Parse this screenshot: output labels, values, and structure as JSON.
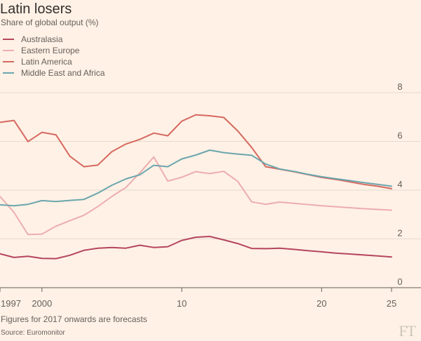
{
  "header": {
    "title": "Latin losers",
    "subtitle": "Share of global output (%)"
  },
  "footer": {
    "note": "Figures for 2017 onwards are forecasts",
    "source": "Source: Euromonitor",
    "logo": "FT"
  },
  "chart_data": {
    "type": "line",
    "title": "Latin losers",
    "subtitle": "Share of global output (%)",
    "xlabel": "",
    "ylabel": "",
    "xlim": [
      1997,
      2025
    ],
    "ylim": [
      0,
      8
    ],
    "x_ticks": [
      {
        "value": 1997,
        "label": "1997"
      },
      {
        "value": 2000,
        "label": "2000"
      },
      {
        "value": 2010,
        "label": "10"
      },
      {
        "value": 2020,
        "label": "20"
      },
      {
        "value": 2025,
        "label": "25"
      }
    ],
    "y_ticks": [
      {
        "value": 0,
        "label": "0"
      },
      {
        "value": 2,
        "label": "2"
      },
      {
        "value": 4,
        "label": "4"
      },
      {
        "value": 6,
        "label": "6"
      },
      {
        "value": 8,
        "label": "8"
      }
    ],
    "grid": true,
    "legend": "top-left",
    "x": [
      1997,
      1998,
      1999,
      2000,
      2001,
      2002,
      2003,
      2004,
      2005,
      2006,
      2007,
      2008,
      2009,
      2010,
      2011,
      2012,
      2013,
      2014,
      2015,
      2016,
      2017,
      2018,
      2019,
      2020,
      2021,
      2022,
      2023,
      2024,
      2025
    ],
    "series": [
      {
        "name": "Australasia",
        "color": "#B5455E",
        "values": [
          1.39,
          1.24,
          1.29,
          1.2,
          1.19,
          1.33,
          1.53,
          1.62,
          1.65,
          1.62,
          1.74,
          1.65,
          1.68,
          1.94,
          2.07,
          2.1,
          1.96,
          1.81,
          1.61,
          1.6,
          1.62,
          1.57,
          1.52,
          1.47,
          1.42,
          1.38,
          1.34,
          1.3,
          1.26
        ]
      },
      {
        "name": "Eastern Europe",
        "color": "#EDADB0",
        "values": [
          3.74,
          3.09,
          2.18,
          2.2,
          2.52,
          2.75,
          2.97,
          3.33,
          3.74,
          4.11,
          4.71,
          5.36,
          4.37,
          4.53,
          4.76,
          4.68,
          4.77,
          4.36,
          3.52,
          3.42,
          3.51,
          3.46,
          3.41,
          3.36,
          3.32,
          3.28,
          3.24,
          3.21,
          3.18
        ]
      },
      {
        "name": "Latin America",
        "color": "#D66961",
        "values": [
          6.78,
          6.86,
          5.99,
          6.37,
          6.27,
          5.39,
          4.96,
          5.03,
          5.58,
          5.89,
          6.08,
          6.34,
          6.23,
          6.83,
          7.09,
          7.05,
          6.98,
          6.43,
          5.75,
          4.96,
          4.86,
          4.76,
          4.64,
          4.52,
          4.44,
          4.34,
          4.24,
          4.16,
          4.06
        ]
      },
      {
        "name": "Middle East and Africa",
        "color": "#6BA6AE",
        "values": [
          3.4,
          3.36,
          3.42,
          3.57,
          3.53,
          3.58,
          3.62,
          3.88,
          4.2,
          4.46,
          4.63,
          5.02,
          4.96,
          5.28,
          5.44,
          5.64,
          5.54,
          5.48,
          5.43,
          5.07,
          4.87,
          4.77,
          4.65,
          4.55,
          4.47,
          4.39,
          4.31,
          4.24,
          4.16
        ]
      }
    ]
  }
}
